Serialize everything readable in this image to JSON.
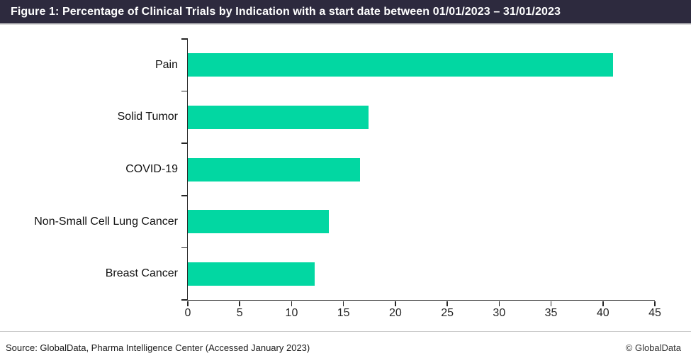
{
  "header": {
    "title": "Figure 1: Percentage of Clinical Trials by Indication with a start date between 01/01/2023 – 31/01/2023"
  },
  "chart_data": {
    "type": "bar",
    "orientation": "horizontal",
    "title": "Percentage of Clinical Trials by Indication with a start date between 01/01/2023 – 31/01/2023",
    "categories": [
      "Pain",
      "Solid Tumor",
      "COVID-19",
      "Non-Small Cell Lung Cancer",
      "Breast Cancer"
    ],
    "values": [
      41,
      17.4,
      16.6,
      13.6,
      12.2
    ],
    "xlabel": "",
    "ylabel": "",
    "xlim": [
      0,
      45
    ],
    "x_ticks": [
      0,
      5,
      10,
      15,
      20,
      25,
      30,
      35,
      40,
      45
    ],
    "grid": false,
    "legend": false,
    "bar_color": "#02d7a2",
    "axis_color": "#262626"
  },
  "footer": {
    "source": "Source: GlobalData, Pharma Intelligence Center (Accessed January 2023)",
    "copyright": "© GlobalData"
  },
  "colors": {
    "title_bg": "#2d2a3e",
    "title_text": "#ffffff",
    "bar": "#02d7a2",
    "divider": "#c9c9c9"
  }
}
